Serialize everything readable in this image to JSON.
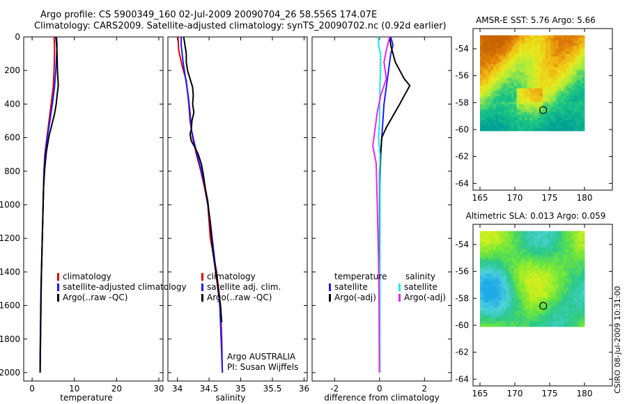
{
  "header": {
    "line1": "Argo profile: CS 5900349_160 02-Jul-2009 20090704_26 58.556S 174.07E",
    "line2": "Climatology: CARS2009. Satellite-adjusted climatology: synTS_20090702.nc (0.92d earlier)"
  },
  "credit": "CSIRO 08-Jul-2009 10:31:00",
  "colors": {
    "climatology": "#dd0000",
    "satellite": "#1a1aff",
    "argo": "#000000",
    "sat_diff": "#22e6e6",
    "argo_diff": "#ee22ee"
  },
  "chart_data": [
    {
      "type": "line",
      "panel": "temperature",
      "xlabel": "temperature",
      "xlim": [
        -2,
        31
      ],
      "ylim": [
        0,
        2050
      ],
      "y_reversed": true,
      "xticks": [
        "0",
        "10",
        "20",
        "30"
      ],
      "yticks": [
        "0",
        "200",
        "400",
        "600",
        "800",
        "1000",
        "1200",
        "1400",
        "1600",
        "1800",
        "2000"
      ],
      "legend": [
        "climatology",
        "satellite-adjusted climatology",
        "Argo(..raw -QC)"
      ],
      "series": [
        {
          "name": "climatology",
          "color": "#dd0000",
          "points": [
            [
              5.2,
              0
            ],
            [
              5.3,
              50
            ],
            [
              5.3,
              100
            ],
            [
              5.2,
              200
            ],
            [
              5.0,
              300
            ],
            [
              4.5,
              400
            ],
            [
              4.0,
              500
            ],
            [
              3.5,
              600
            ],
            [
              3.0,
              700
            ],
            [
              2.8,
              800
            ],
            [
              2.6,
              1000
            ],
            [
              2.4,
              1200
            ],
            [
              2.2,
              1400
            ],
            [
              2.1,
              1600
            ],
            [
              2.0,
              1800
            ],
            [
              1.9,
              2000
            ]
          ]
        },
        {
          "name": "satellite-adjusted climatology",
          "color": "#1a1aff",
          "points": [
            [
              5.8,
              0
            ],
            [
              5.9,
              50
            ],
            [
              5.8,
              100
            ],
            [
              5.6,
              200
            ],
            [
              5.3,
              300
            ],
            [
              4.8,
              400
            ],
            [
              4.2,
              500
            ],
            [
              3.6,
              600
            ],
            [
              3.1,
              700
            ],
            [
              2.8,
              800
            ],
            [
              2.6,
              1000
            ],
            [
              2.4,
              1200
            ],
            [
              2.2,
              1400
            ],
            [
              2.1,
              1600
            ],
            [
              2.0,
              1800
            ],
            [
              1.9,
              2000
            ]
          ]
        },
        {
          "name": "Argo(..raw -QC)",
          "color": "#000000",
          "points": [
            [
              5.6,
              0
            ],
            [
              5.8,
              50
            ],
            [
              5.9,
              100
            ],
            [
              6.0,
              200
            ],
            [
              6.2,
              290
            ],
            [
              5.9,
              350
            ],
            [
              5.7,
              400
            ],
            [
              5.3,
              460
            ],
            [
              4.7,
              520
            ],
            [
              4.0,
              590
            ],
            [
              3.4,
              680
            ],
            [
              3.0,
              780
            ],
            [
              2.7,
              900
            ],
            [
              2.5,
              1100
            ],
            [
              2.3,
              1300
            ],
            [
              2.1,
              1500
            ],
            [
              2.0,
              1700
            ],
            [
              1.9,
              1900
            ],
            [
              1.9,
              2000
            ]
          ]
        }
      ]
    },
    {
      "type": "line",
      "panel": "salinity",
      "xlabel": "salinity",
      "xlim": [
        33.85,
        36.05
      ],
      "ylim": [
        0,
        2050
      ],
      "y_reversed": true,
      "xticks": [
        "34",
        "34.5",
        "35",
        "35.5",
        "36"
      ],
      "yticks": [
        "0",
        "200",
        "400",
        "600",
        "800",
        "1000",
        "1200",
        "1400",
        "1600",
        "1800",
        "2000"
      ],
      "legend": [
        "climatology",
        "satellite adj. clim.",
        "Argo(..raw -QC)"
      ],
      "annotation": [
        "Argo AUSTRALIA",
        "PI: Susan Wijffels"
      ],
      "series": [
        {
          "name": "climatology",
          "color": "#dd0000",
          "points": [
            [
              34.01,
              0
            ],
            [
              34.02,
              80
            ],
            [
              34.08,
              180
            ],
            [
              34.14,
              260
            ],
            [
              34.18,
              400
            ],
            [
              34.2,
              500
            ],
            [
              34.24,
              600
            ],
            [
              34.3,
              700
            ],
            [
              34.37,
              800
            ],
            [
              34.43,
              900
            ],
            [
              34.48,
              1000
            ],
            [
              34.52,
              1200
            ],
            [
              34.57,
              1300
            ],
            [
              34.62,
              1400
            ],
            [
              34.65,
              1500
            ],
            [
              34.68,
              1600
            ],
            [
              34.7,
              1800
            ],
            [
              34.71,
              2000
            ]
          ]
        },
        {
          "name": "satellite adj. clim.",
          "color": "#1a1aff",
          "points": [
            [
              34.06,
              0
            ],
            [
              34.06,
              50
            ],
            [
              34.09,
              150
            ],
            [
              34.13,
              250
            ],
            [
              34.17,
              350
            ],
            [
              34.2,
              450
            ],
            [
              34.22,
              550
            ],
            [
              34.26,
              620
            ],
            [
              34.31,
              700
            ],
            [
              34.38,
              800
            ],
            [
              34.44,
              900
            ],
            [
              34.48,
              1000
            ],
            [
              34.52,
              1100
            ],
            [
              34.55,
              1200
            ],
            [
              34.58,
              1300
            ],
            [
              34.61,
              1400
            ],
            [
              34.64,
              1500
            ],
            [
              34.67,
              1600
            ],
            [
              34.69,
              1800
            ],
            [
              34.71,
              2000
            ]
          ]
        },
        {
          "name": "Argo(..raw -QC)",
          "color": "#000000",
          "points": [
            [
              34.1,
              0
            ],
            [
              34.12,
              50
            ],
            [
              34.14,
              100
            ],
            [
              34.14,
              150
            ],
            [
              34.16,
              200
            ],
            [
              34.2,
              250
            ],
            [
              34.24,
              300
            ],
            [
              34.25,
              350
            ],
            [
              34.24,
              400
            ],
            [
              34.26,
              450
            ],
            [
              34.23,
              500
            ],
            [
              34.22,
              550
            ],
            [
              34.2,
              580
            ],
            [
              34.22,
              620
            ],
            [
              34.28,
              660
            ],
            [
              34.33,
              700
            ],
            [
              34.38,
              760
            ],
            [
              34.41,
              820
            ],
            [
              34.44,
              900
            ],
            [
              34.48,
              980
            ],
            [
              34.5,
              1050
            ],
            [
              34.52,
              1120
            ],
            [
              34.54,
              1200
            ],
            [
              34.56,
              1280
            ],
            [
              34.59,
              1360
            ],
            [
              34.62,
              1440
            ],
            [
              34.65,
              1520
            ],
            [
              34.68,
              1600
            ],
            [
              34.7,
              1700
            ]
          ]
        }
      ]
    },
    {
      "type": "line",
      "panel": "difference",
      "xlabel": "difference from climatology",
      "xlim": [
        -3,
        3.2
      ],
      "ylim": [
        0,
        2050
      ],
      "y_reversed": true,
      "xticks": [
        "-2",
        "0",
        "2"
      ],
      "yticks": [
        "0",
        "200",
        "400",
        "600",
        "800",
        "1000",
        "1200",
        "1400",
        "1600",
        "1800",
        "2000"
      ],
      "legend_left": {
        "heading": "temperature",
        "items": [
          "satellite",
          "Argo(-adj)"
        ]
      },
      "legend_right": {
        "heading": "salinity",
        "items": [
          "satellite",
          "Argo(-adj)"
        ]
      },
      "series": [
        {
          "name": "temperature satellite",
          "color": "#1a1aff",
          "points": [
            [
              0.5,
              0
            ],
            [
              0.6,
              50
            ],
            [
              0.5,
              100
            ],
            [
              0.4,
              200
            ],
            [
              0.3,
              300
            ],
            [
              0.2,
              400
            ],
            [
              0.15,
              500
            ],
            [
              0.1,
              600
            ],
            [
              0.05,
              700
            ],
            [
              0,
              800
            ],
            [
              0,
              1000
            ],
            [
              0,
              2000
            ]
          ]
        },
        {
          "name": "temperature Argo(-adj)",
          "color": "#000000",
          "points": [
            [
              0.45,
              0
            ],
            [
              0.5,
              50
            ],
            [
              0.6,
              100
            ],
            [
              0.7,
              150
            ],
            [
              0.9,
              200
            ],
            [
              1.1,
              250
            ],
            [
              1.35,
              290
            ],
            [
              1.1,
              350
            ],
            [
              0.9,
              400
            ],
            [
              0.6,
              470
            ],
            [
              0.3,
              540
            ],
            [
              0.1,
              600
            ],
            [
              0.05,
              700
            ],
            [
              0.02,
              900
            ],
            [
              0.01,
              1200
            ],
            [
              0,
              1600
            ],
            [
              0,
              2000
            ]
          ]
        },
        {
          "name": "salinity satellite",
          "color": "#22e6e6",
          "points": [
            [
              -0.05,
              0
            ],
            [
              -0.05,
              50
            ],
            [
              0.05,
              100
            ],
            [
              0.05,
              200
            ],
            [
              0.02,
              300
            ],
            [
              0.01,
              400
            ],
            [
              0,
              500
            ],
            [
              -0.05,
              600
            ],
            [
              0.02,
              700
            ],
            [
              0.02,
              800
            ],
            [
              0.02,
              1000
            ],
            [
              0.02,
              1500
            ],
            [
              0.02,
              2000
            ]
          ]
        },
        {
          "name": "salinity Argo(-adj)",
          "color": "#ee22ee",
          "points": [
            [
              0.45,
              0
            ],
            [
              0.3,
              80
            ],
            [
              0.2,
              150
            ],
            [
              0.3,
              250
            ],
            [
              0.05,
              350
            ],
            [
              -0.1,
              450
            ],
            [
              -0.2,
              550
            ],
            [
              -0.3,
              650
            ],
            [
              -0.15,
              750
            ],
            [
              -0.1,
              1000
            ],
            [
              -0.05,
              1300
            ],
            [
              -0.02,
              1600
            ],
            [
              -0.01,
              2000
            ]
          ]
        }
      ]
    },
    {
      "type": "heatmap",
      "panel": "sst_map",
      "title": "AMSR-E SST: 5.76 Argo: 5.66",
      "xlim": [
        164,
        184
      ],
      "ylim": [
        -64.5,
        -52.5
      ],
      "xticks": [
        "165",
        "170",
        "175",
        "180"
      ],
      "yticks": [
        "-54",
        "-56",
        "-58",
        "-60",
        "-62",
        "-64"
      ],
      "data_extent": {
        "lon": [
          165,
          180
        ],
        "lat": [
          -60.1,
          -53
        ]
      },
      "marker": {
        "lon": 174.07,
        "lat": -58.556
      }
    },
    {
      "type": "heatmap",
      "panel": "sla_map",
      "title": "Altimetric SLA: 0.013 Argo: 0.059",
      "xlim": [
        164,
        184
      ],
      "ylim": [
        -64.5,
        -52.5
      ],
      "xticks": [
        "165",
        "170",
        "175",
        "180"
      ],
      "yticks": [
        "-54",
        "-56",
        "-58",
        "-60",
        "-62",
        "-64"
      ],
      "data_extent": {
        "lon": [
          165,
          180
        ],
        "lat": [
          -60.1,
          -53
        ]
      },
      "marker": {
        "lon": 174.07,
        "lat": -58.556
      }
    }
  ]
}
